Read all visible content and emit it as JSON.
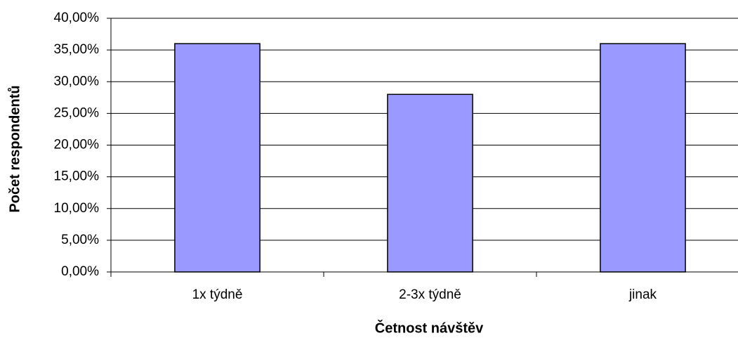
{
  "chart_data": {
    "type": "bar",
    "x_label": "Četnost návštěv",
    "y_label": "Počet respondentů",
    "categories": [
      "1x týdně",
      "2-3x týdně",
      "jinak"
    ],
    "values": [
      36,
      28,
      36
    ],
    "color": "#9999ff",
    "ylim": [
      0,
      40
    ],
    "yticks": [
      {
        "value": 0,
        "label": "0,00%"
      },
      {
        "value": 5,
        "label": "5,00%"
      },
      {
        "value": 10,
        "label": "10,00%"
      },
      {
        "value": 15,
        "label": "15,00%"
      },
      {
        "value": 20,
        "label": "20,00%"
      },
      {
        "value": 25,
        "label": "25,00%"
      },
      {
        "value": 30,
        "label": "30,00%"
      },
      {
        "value": 35,
        "label": "35,00%"
      },
      {
        "value": 40,
        "label": "40,00%"
      }
    ],
    "grid": true
  }
}
